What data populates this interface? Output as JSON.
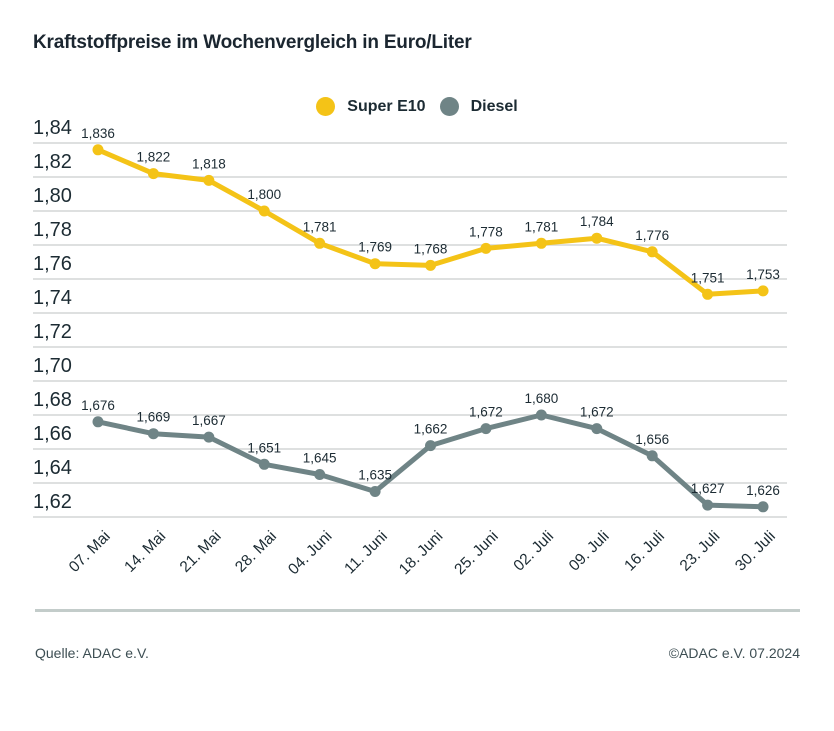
{
  "title": "Kraftstoffpreise im Wochenvergleich in Euro/Liter",
  "legend": [
    {
      "label": "Super E10",
      "color": "#F4C317"
    },
    {
      "label": "Diesel",
      "color": "#6F8486"
    }
  ],
  "footer": {
    "source_left": "Quelle: ADAC e.V.",
    "source_right": "©ADAC e.V. 07.2024"
  },
  "colors": {
    "gridline": "#D3D6D6",
    "text": "#1C2B33",
    "divider": "#C3CCCA"
  },
  "chart_data": {
    "type": "line",
    "title": "Kraftstoffpreise im Wochenvergleich in Euro/Liter",
    "xlabel": "",
    "ylabel": "Euro/Liter",
    "ylim": [
      1.62,
      1.84
    ],
    "ytick_step": 0.02,
    "grid": true,
    "legend_position": "top-center",
    "decimal_format": "comma",
    "categories": [
      "07. Mai",
      "14. Mai",
      "21. Mai",
      "28. Mai",
      "04. Juni",
      "11. Juni",
      "18. Juni",
      "25. Juni",
      "02. Juli",
      "09. Juli",
      "16. Juli",
      "23. Juli",
      "30. Juli"
    ],
    "series": [
      {
        "name": "Super E10",
        "color": "#F4C317",
        "values": [
          1.836,
          1.822,
          1.818,
          1.8,
          1.781,
          1.769,
          1.768,
          1.778,
          1.781,
          1.784,
          1.776,
          1.751,
          1.753
        ]
      },
      {
        "name": "Diesel",
        "color": "#6F8486",
        "values": [
          1.676,
          1.669,
          1.667,
          1.651,
          1.645,
          1.635,
          1.662,
          1.672,
          1.68,
          1.672,
          1.656,
          1.627,
          1.626
        ]
      }
    ]
  }
}
